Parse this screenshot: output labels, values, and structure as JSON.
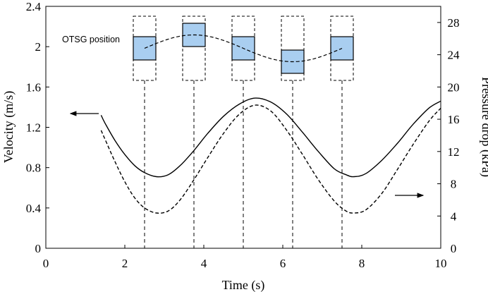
{
  "chart_data": {
    "type": "line",
    "xlabel": "Time (s)",
    "ylabel": "Velocity (m/s)",
    "y2label": "Pressure drop (kPa)",
    "xlim": [
      0,
      10
    ],
    "ylim": [
      0,
      2.4
    ],
    "y2lim": [
      0,
      30
    ],
    "xticks": [
      0,
      2,
      4,
      6,
      8,
      10
    ],
    "xtick_labels": [
      "0",
      "2",
      "4",
      "6",
      "8",
      "10"
    ],
    "yticks": [
      0,
      0.4,
      0.8,
      1.2,
      1.6,
      2,
      2.4
    ],
    "ytick_labels": [
      "0",
      "0.4",
      "0.8",
      "1.2",
      "1.6",
      "2",
      "2.4"
    ],
    "y2ticks": [
      0,
      4,
      8,
      12,
      16,
      20,
      24,
      28
    ],
    "y2tick_labels": [
      "0",
      "4",
      "8",
      "12",
      "16",
      "20",
      "24",
      "28"
    ],
    "grid": false,
    "series": [
      {
        "axis": "left",
        "style": "solid",
        "x": [
          1.4,
          1.5,
          1.75,
          2.0,
          2.25,
          2.5,
          2.8,
          3.1,
          3.4,
          3.75,
          4.1,
          4.5,
          4.9,
          5.3,
          5.7,
          6.1,
          6.5,
          6.9,
          7.3,
          7.6,
          7.8,
          8.1,
          8.5,
          8.9,
          9.3,
          9.7,
          10.0
        ],
        "values": [
          1.32,
          1.24,
          1.07,
          0.93,
          0.82,
          0.75,
          0.71,
          0.73,
          0.82,
          0.97,
          1.14,
          1.31,
          1.43,
          1.49,
          1.45,
          1.33,
          1.15,
          0.96,
          0.79,
          0.73,
          0.71,
          0.74,
          0.87,
          1.04,
          1.23,
          1.39,
          1.46
        ]
      },
      {
        "axis": "left",
        "style": "dashed",
        "x": [
          1.4,
          1.5,
          1.75,
          2.0,
          2.25,
          2.5,
          2.8,
          3.1,
          3.4,
          3.75,
          4.1,
          4.5,
          4.9,
          5.3,
          5.7,
          6.1,
          6.5,
          6.9,
          7.3,
          7.6,
          7.8,
          8.1,
          8.5,
          8.9,
          9.3,
          9.7,
          10.0
        ],
        "values": [
          1.17,
          1.08,
          0.86,
          0.66,
          0.5,
          0.4,
          0.35,
          0.37,
          0.48,
          0.68,
          0.9,
          1.14,
          1.33,
          1.42,
          1.36,
          1.17,
          0.93,
          0.68,
          0.47,
          0.37,
          0.35,
          0.38,
          0.54,
          0.78,
          1.03,
          1.26,
          1.39
        ]
      }
    ],
    "annotations": {
      "otsg_label": "OTSG position",
      "otsg_positions": [
        {
          "time": 2.5,
          "offset": 0.0
        },
        {
          "time": 3.75,
          "offset": 0.6
        },
        {
          "time": 5.0,
          "offset": 0.0
        },
        {
          "time": 6.25,
          "offset": -0.6
        },
        {
          "time": 7.5,
          "offset": 0.0
        }
      ],
      "otsg_fill": "#a9cef0",
      "velocity_arrow": "left",
      "pressure_arrow": "right"
    }
  }
}
